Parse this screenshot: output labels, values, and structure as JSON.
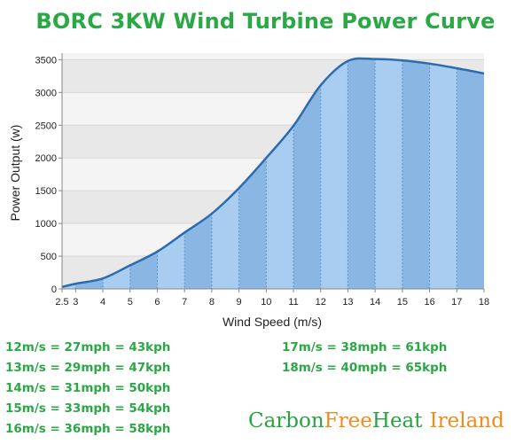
{
  "title": "BORC 3KW Wind Turbine Power Curve",
  "chart_data": {
    "type": "area",
    "xlabel": "Wind Speed (m/s)",
    "ylabel": "Power Output (w)",
    "xlim": [
      2.5,
      18
    ],
    "ylim": [
      0,
      3600
    ],
    "x_ticks": [
      "2.5",
      "3",
      "4",
      "5",
      "6",
      "7",
      "8",
      "9",
      "10",
      "11",
      "12",
      "13",
      "14",
      "15",
      "16",
      "17",
      "18"
    ],
    "y_ticks": [
      "0",
      "500",
      "1000",
      "1500",
      "2000",
      "2500",
      "3000",
      "3500"
    ],
    "grid": true,
    "x": [
      2.5,
      3,
      4,
      5,
      6,
      7,
      8,
      9,
      10,
      11,
      12,
      13,
      14,
      15,
      16,
      17,
      18
    ],
    "values": [
      30,
      80,
      160,
      360,
      570,
      860,
      1150,
      1540,
      2000,
      2490,
      3110,
      3480,
      3510,
      3490,
      3440,
      3370,
      3290
    ],
    "fill_colors": [
      "#a9cdf0",
      "#8ab6e4"
    ],
    "line_color": "#2b6cb0"
  },
  "conversions_left": [
    "12m/s = 27mph = 43kph",
    "13m/s = 29mph = 47kph",
    "14m/s = 31mph = 50kph",
    "15m/s = 33mph = 54kph",
    "16m/s = 36mph = 58kph"
  ],
  "conversions_right": [
    "17m/s = 38mph = 61kph",
    "18m/s = 40mph = 65kph"
  ],
  "brand": {
    "part1": "Carbon",
    "part2": "Free",
    "part3": "Heat",
    "part4": "Ireland"
  }
}
